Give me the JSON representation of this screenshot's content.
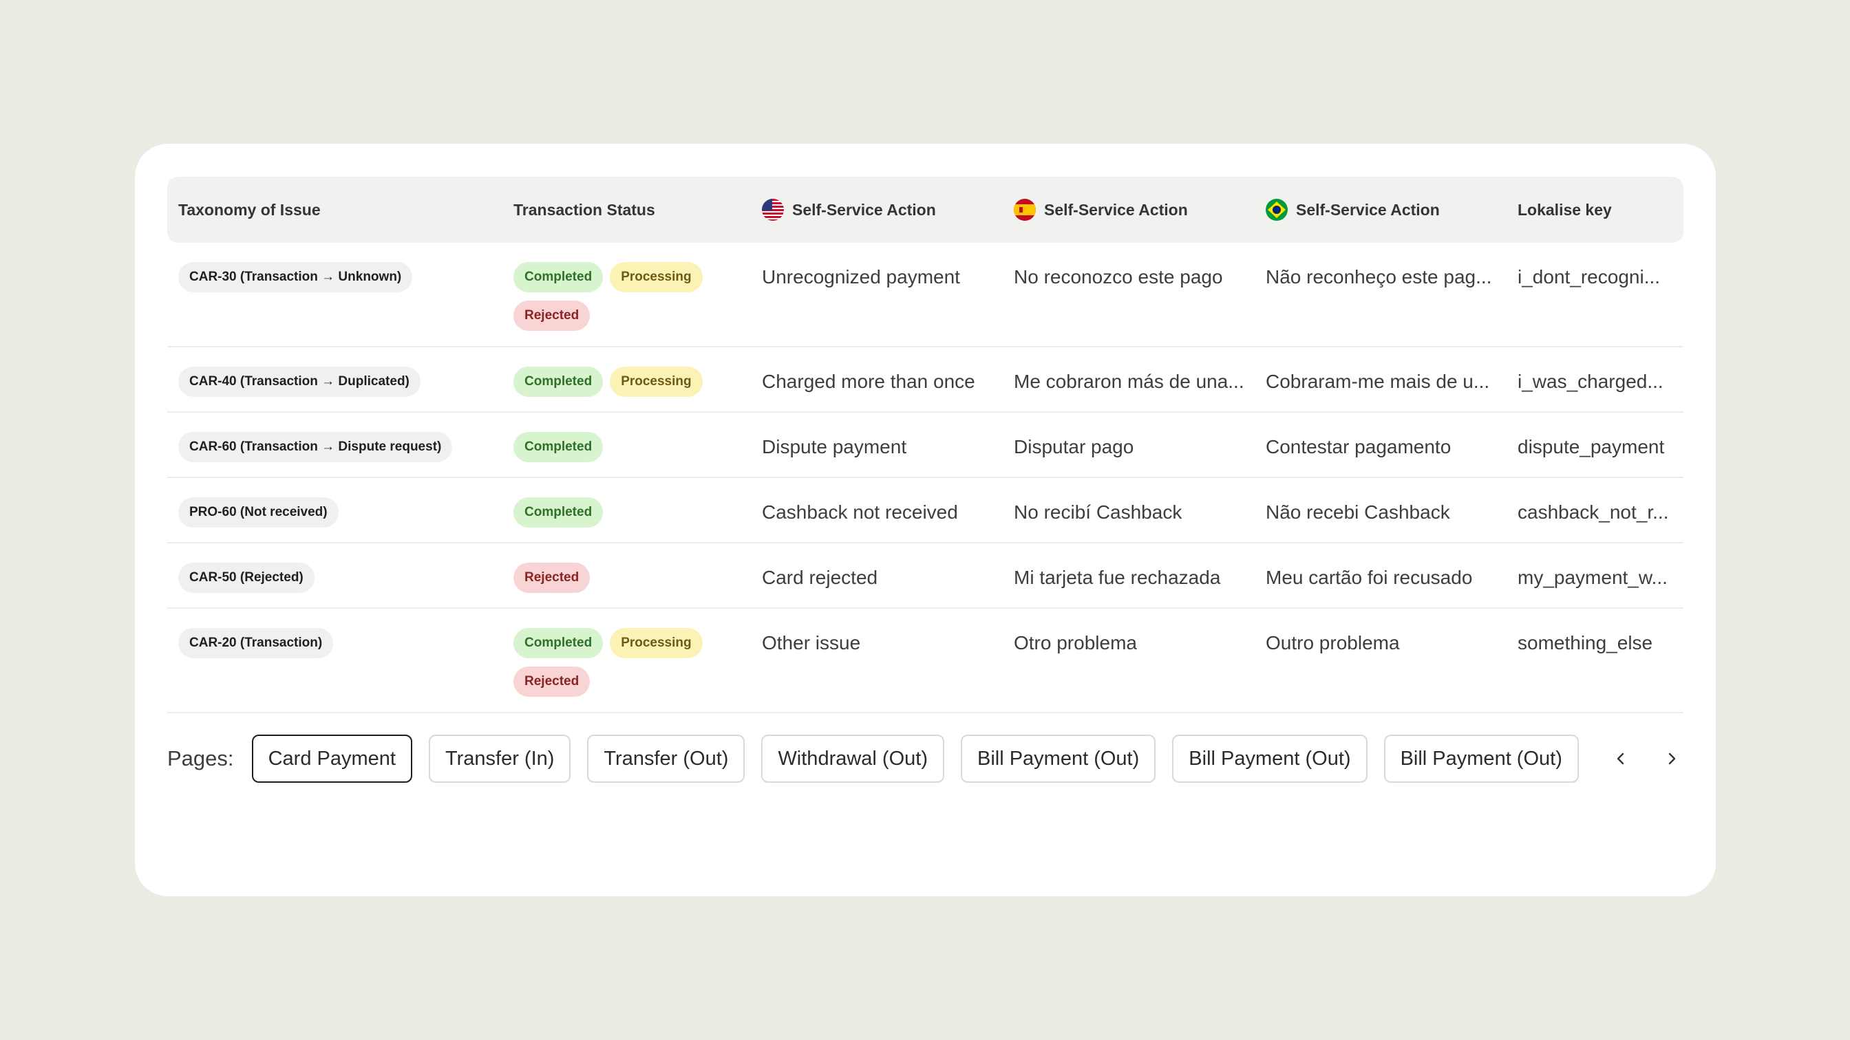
{
  "table": {
    "headers": [
      {
        "label": "Taxonomy of Issue",
        "flag": null
      },
      {
        "label": "Transaction Status",
        "flag": null
      },
      {
        "label": "Self-Service Action",
        "flag": "us-flag-icon"
      },
      {
        "label": "Self-Service Action",
        "flag": "es-flag-icon"
      },
      {
        "label": "Self-Service Action",
        "flag": "br-flag-icon"
      },
      {
        "label": "Lokalise key",
        "flag": null
      }
    ],
    "rows": [
      {
        "taxonomy": "CAR-30 (Transaction → Unknown)",
        "statuses": [
          "Completed",
          "Processing",
          "Rejected"
        ],
        "en": "Unrecognized payment",
        "es": "No reconozco este pago",
        "pt": "Não reconheço este pag...",
        "key": "i_dont_recogni..."
      },
      {
        "taxonomy": "CAR-40 (Transaction → Duplicated)",
        "statuses": [
          "Completed",
          "Processing"
        ],
        "en": "Charged more than once",
        "es": "Me cobraron más de una...",
        "pt": "Cobraram-me mais de u...",
        "key": "i_was_charged..."
      },
      {
        "taxonomy": "CAR-60 (Transaction → Dispute request)",
        "statuses": [
          "Completed"
        ],
        "en": "Dispute payment",
        "es": "Disputar pago",
        "pt": "Contestar pagamento",
        "key": "dispute_payment"
      },
      {
        "taxonomy": "PRO-60 (Not received)",
        "statuses": [
          "Completed"
        ],
        "en": "Cashback not received",
        "es": "No recibí Cashback",
        "pt": "Não recebi Cashback",
        "key": "cashback_not_r..."
      },
      {
        "taxonomy": "CAR-50 (Rejected)",
        "statuses": [
          "Rejected"
        ],
        "en": "Card rejected",
        "es": "Mi tarjeta fue rechazada",
        "pt": "Meu cartão foi recusado",
        "key": "my_payment_w..."
      },
      {
        "taxonomy": "CAR-20 (Transaction)",
        "statuses": [
          "Completed",
          "Processing",
          "Rejected"
        ],
        "en": "Other issue",
        "es": "Otro problema",
        "pt": "Outro problema",
        "key": "something_else"
      }
    ]
  },
  "pagination": {
    "label": "Pages:",
    "pages": [
      "Card Payment",
      "Transfer (In)",
      "Transfer (Out)",
      "Withdrawal (Out)",
      "Bill Payment (Out)",
      "Bill Payment (Out)",
      "Bill Payment (Out)"
    ],
    "active_index": 0,
    "prev_icon": "chevron-left-icon",
    "next_icon": "chevron-right-icon"
  },
  "colors": {
    "background": "#eaece4",
    "completed": "#d7f4cf",
    "processing": "#faf3b5",
    "rejected": "#f8d4d4"
  }
}
